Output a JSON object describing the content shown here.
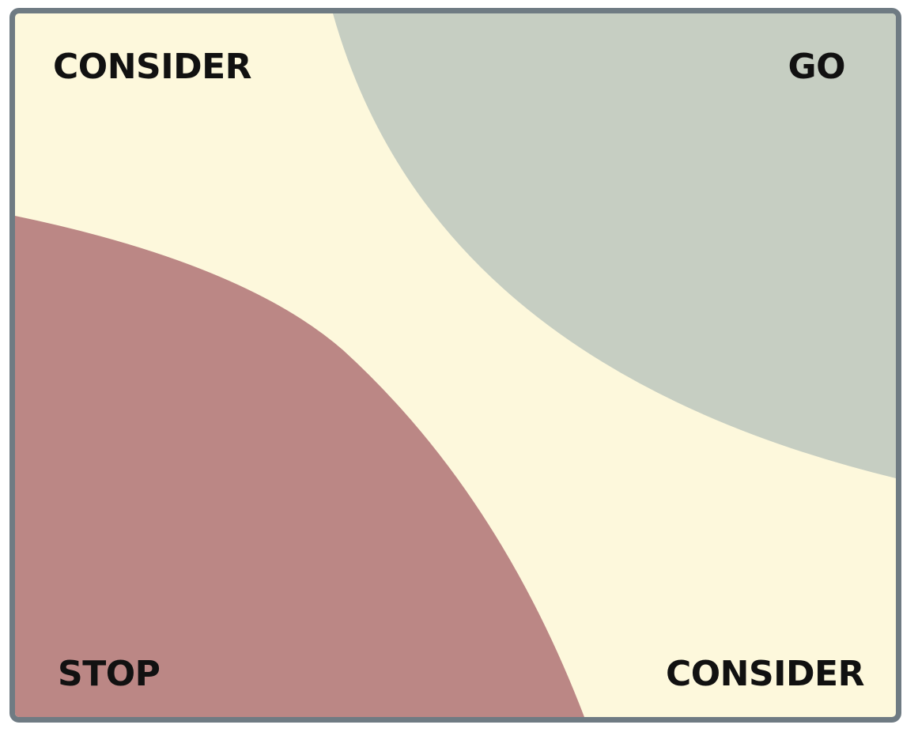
{
  "quadrants": {
    "top_left": {
      "label": "CONSIDER"
    },
    "top_right": {
      "label": "GO"
    },
    "bottom_left": {
      "label": "STOP"
    },
    "bottom_right": {
      "label": "CONSIDER"
    }
  },
  "colors": {
    "background": "#fdf8dc",
    "go_region": "#c6cec2",
    "stop_region": "#bb8785",
    "frame_border": "#6f7b83",
    "text": "#111111"
  }
}
